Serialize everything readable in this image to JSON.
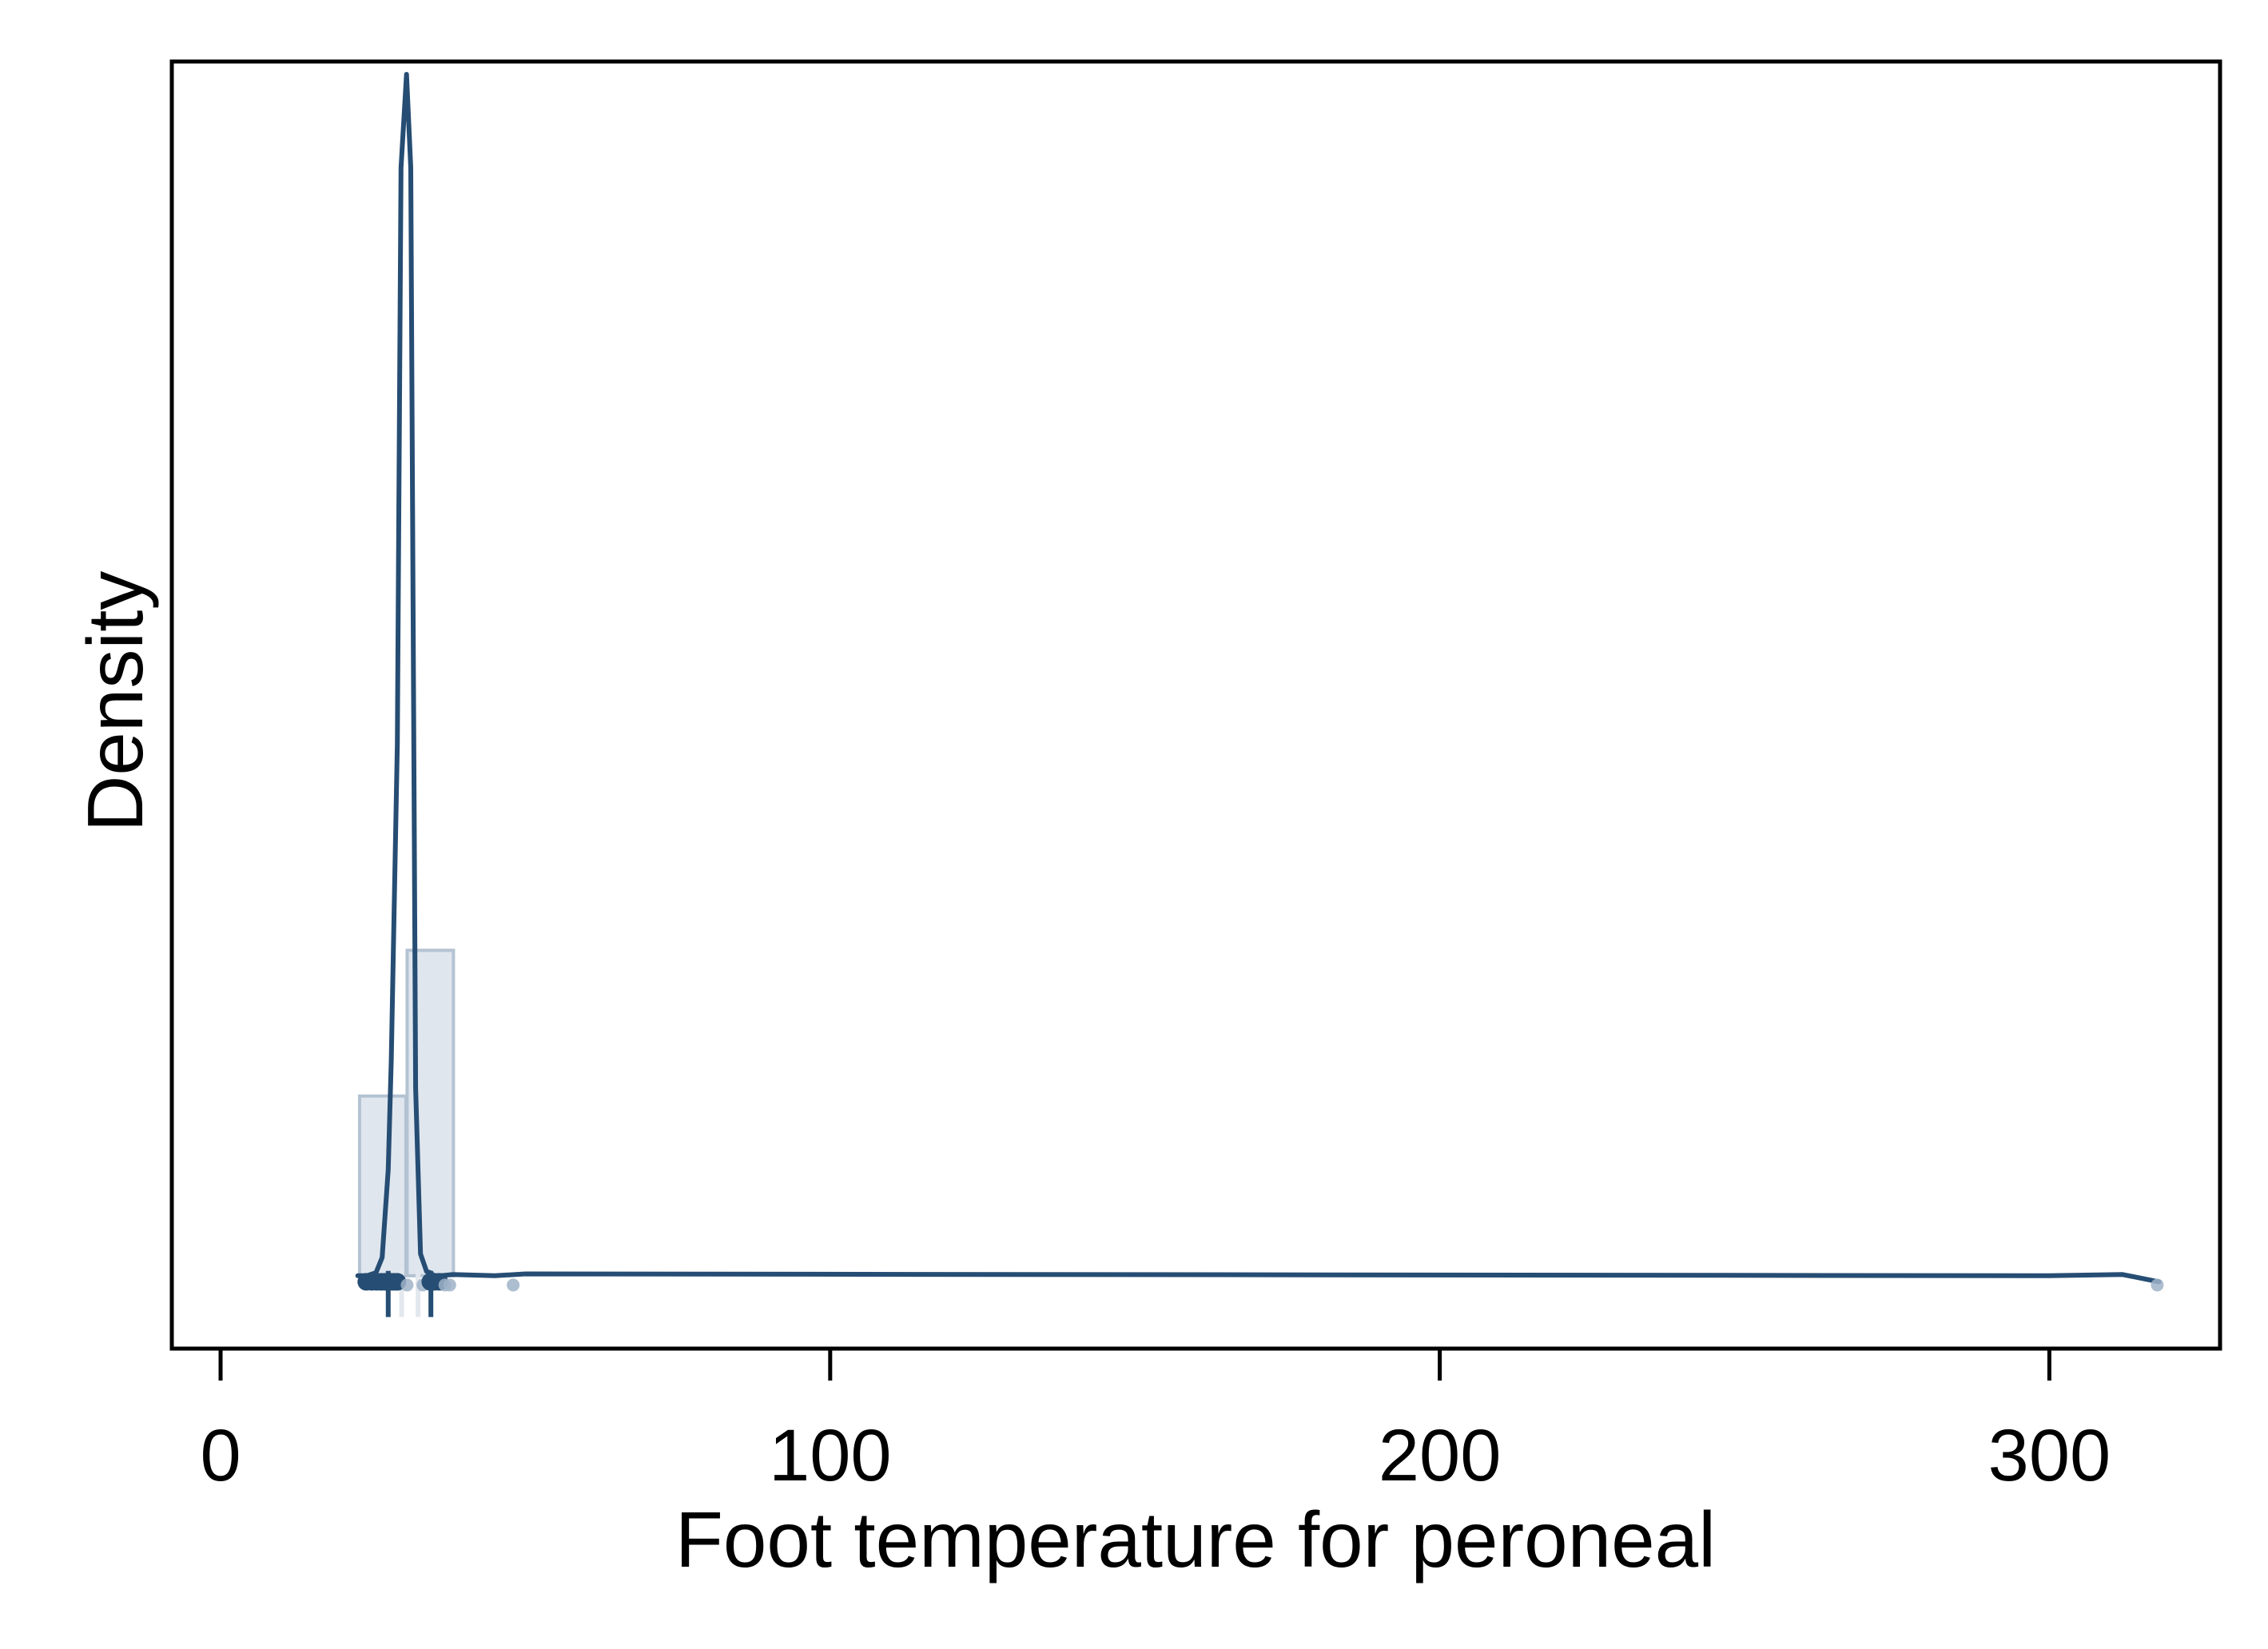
{
  "chart_data": {
    "type": "histogram+density",
    "title": "",
    "xlabel": "Foot temperature for peroneal",
    "ylabel": "Density",
    "xlim": [
      -8,
      328
    ],
    "ylim": [
      -0.012,
      0.2
    ],
    "x_ticks": [
      0,
      100,
      200,
      300
    ],
    "x_tick_labels": [
      "0",
      "100",
      "200",
      "300"
    ],
    "y_ticks_shown": false,
    "grid": false,
    "legend": "none",
    "colors": {
      "line": "#264d73",
      "bar_fill": "#dfe6ee",
      "bar_stroke": "#b4c3d2",
      "rug_light": "#9fb3c8",
      "frame": "#000000"
    },
    "histogram": {
      "bins": [
        {
          "x0": 22.8,
          "x1": 30.4,
          "density": 0.0296
        },
        {
          "x0": 30.6,
          "x1": 38.2,
          "density": 0.0536
        }
      ]
    },
    "density_curve": {
      "x": [
        22.5,
        24.0,
        25.5,
        26.5,
        27.5,
        28.0,
        29.0,
        29.6,
        30.5,
        31.2,
        32.0,
        32.8,
        33.8,
        34.4,
        35.0,
        36.0,
        38.0,
        45.0,
        50.0,
        300.0,
        312.0,
        318.0
      ],
      "y": [
        0.0,
        0.0,
        0.0005,
        0.003,
        0.0175,
        0.0355,
        0.0876,
        0.1825,
        0.1979,
        0.1825,
        0.0309,
        0.0036,
        0.0007,
        0.0005,
        0.0,
        0.0,
        0.0002,
        0.0,
        0.0003,
        0.0,
        0.0002,
        -0.001
      ]
    },
    "rug_points": [
      {
        "x": 23.9,
        "emphasis": "dark"
      },
      {
        "x": 24.8,
        "emphasis": "dark"
      },
      {
        "x": 25.6,
        "emphasis": "dark"
      },
      {
        "x": 26.3,
        "emphasis": "dark"
      },
      {
        "x": 26.9,
        "emphasis": "dark"
      },
      {
        "x": 27.4,
        "emphasis": "dark"
      },
      {
        "x": 28.0,
        "emphasis": "dark"
      },
      {
        "x": 28.5,
        "emphasis": "dark"
      },
      {
        "x": 29.0,
        "emphasis": "dark"
      },
      {
        "x": 30.6,
        "emphasis": "light"
      },
      {
        "x": 33.2,
        "emphasis": "light"
      },
      {
        "x": 34.4,
        "emphasis": "dark"
      },
      {
        "x": 35.1,
        "emphasis": "dark"
      },
      {
        "x": 35.9,
        "emphasis": "dark"
      },
      {
        "x": 36.8,
        "emphasis": "light"
      },
      {
        "x": 37.6,
        "emphasis": "light"
      },
      {
        "x": 48.0,
        "emphasis": "light"
      },
      {
        "x": 317.7,
        "emphasis": "light"
      }
    ],
    "markers": {
      "dark_ticks": [
        27.5,
        34.5
      ],
      "light_ticks": [
        29.7,
        32.4
      ]
    }
  }
}
